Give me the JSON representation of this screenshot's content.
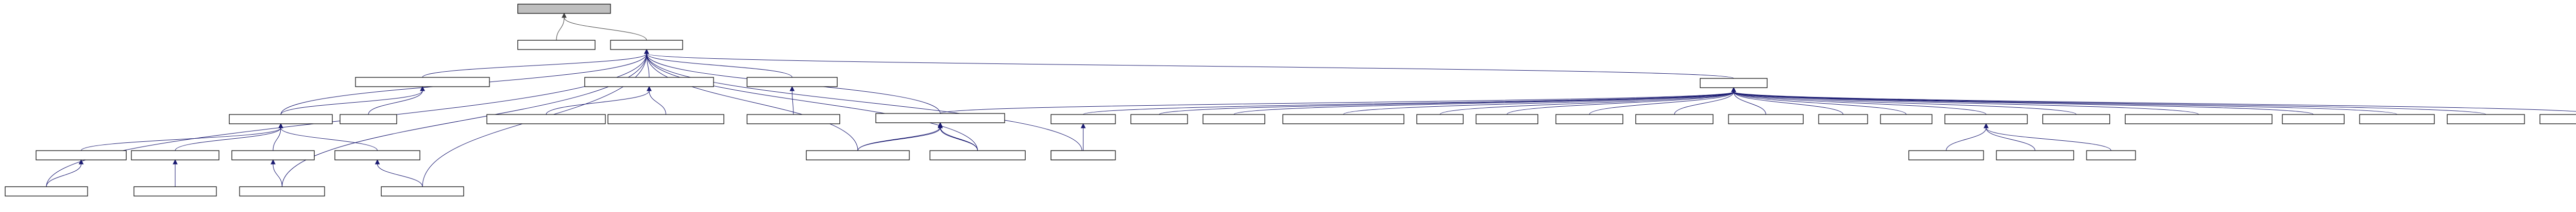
{
  "diagram": {
    "type": "inheritance-graph",
    "node_labels_legible": false,
    "edge_color": "#191970",
    "root_fill": "#bfbfbf",
    "nodes": [
      {
        "id": "root",
        "label": ""
      },
      {
        "id": "n_lvl1a",
        "label": ""
      },
      {
        "id": "n_hub",
        "label": ""
      },
      {
        "id": "n_l2a",
        "label": ""
      },
      {
        "id": "n_l2b",
        "label": ""
      },
      {
        "id": "n_l2c",
        "label": ""
      },
      {
        "id": "n_l2d",
        "label": ""
      },
      {
        "id": "n_l3a",
        "label": ""
      },
      {
        "id": "n_l3b",
        "label": ""
      },
      {
        "id": "n_l3c",
        "label": ""
      },
      {
        "id": "n_l3d",
        "label": ""
      },
      {
        "id": "n_l3e",
        "label": ""
      },
      {
        "id": "n_l4a",
        "label": ""
      },
      {
        "id": "n_l4b",
        "label": ""
      },
      {
        "id": "n_l4c",
        "label": ""
      },
      {
        "id": "n_l4d",
        "label": ""
      },
      {
        "id": "n_l5a",
        "label": ""
      },
      {
        "id": "n_l5b",
        "label": ""
      },
      {
        "id": "n_l5c",
        "label": ""
      },
      {
        "id": "n_l5d",
        "label": ""
      },
      {
        "id": "n_l4e",
        "label": ""
      },
      {
        "id": "n_l4f",
        "label": ""
      },
      {
        "id": "n_l4g",
        "label": ""
      },
      {
        "id": "n_hub2",
        "label": ""
      },
      {
        "id": "n_r1",
        "label": ""
      },
      {
        "id": "n_r2",
        "label": ""
      },
      {
        "id": "n_r3",
        "label": ""
      },
      {
        "id": "n_r4",
        "label": ""
      },
      {
        "id": "n_r5",
        "label": ""
      },
      {
        "id": "n_r6",
        "label": ""
      },
      {
        "id": "n_r7",
        "label": ""
      },
      {
        "id": "n_r8",
        "label": ""
      },
      {
        "id": "n_r9",
        "label": ""
      },
      {
        "id": "n_r10",
        "label": ""
      },
      {
        "id": "n_r11",
        "label": ""
      },
      {
        "id": "n_r12",
        "label": ""
      },
      {
        "id": "n_r13",
        "label": ""
      },
      {
        "id": "n_r14",
        "label": ""
      },
      {
        "id": "n_r15",
        "label": ""
      },
      {
        "id": "n_r16",
        "label": ""
      },
      {
        "id": "n_r17",
        "label": ""
      },
      {
        "id": "n_r18",
        "label": ""
      },
      {
        "id": "n_r19",
        "label": ""
      },
      {
        "id": "n_s1",
        "label": ""
      },
      {
        "id": "n_s2",
        "label": ""
      },
      {
        "id": "n_s3",
        "label": ""
      },
      {
        "id": "n_m1",
        "label": ""
      }
    ],
    "edges": [
      {
        "from": "n_lvl1a",
        "to": "root"
      },
      {
        "from": "n_hub",
        "to": "root"
      },
      {
        "from": "n_l2a",
        "to": "n_hub"
      },
      {
        "from": "n_l2b",
        "to": "n_hub"
      },
      {
        "from": "n_l2c",
        "to": "n_hub"
      },
      {
        "from": "n_l2d",
        "to": "n_hub"
      },
      {
        "from": "n_hub2",
        "to": "n_hub"
      },
      {
        "from": "n_l3a",
        "to": "n_l2a"
      },
      {
        "from": "n_l3b",
        "to": "n_l2a"
      },
      {
        "from": "n_l3a",
        "to": "n_hub"
      },
      {
        "from": "n_l3c",
        "to": "n_l2b"
      },
      {
        "from": "n_l3d",
        "to": "n_l2b"
      },
      {
        "from": "n_l3e",
        "to": "n_l2c"
      },
      {
        "from": "n_l3f",
        "to": "n_l2d"
      },
      {
        "from": "n_l4a",
        "to": "n_l3a"
      },
      {
        "from": "n_l4b",
        "to": "n_l3a"
      },
      {
        "from": "n_l4c",
        "to": "n_l3a"
      },
      {
        "from": "n_l4d",
        "to": "n_l3a"
      },
      {
        "from": "n_l5a",
        "to": "n_l4a"
      },
      {
        "from": "n_l5b",
        "to": "n_l4b"
      },
      {
        "from": "n_l5c",
        "to": "n_l4c"
      },
      {
        "from": "n_l5d",
        "to": "n_l4d"
      },
      {
        "from": "n_l4e",
        "to": "n_l3f"
      },
      {
        "from": "n_l4f",
        "to": "n_l3f"
      },
      {
        "from": "n_m1",
        "to": "n_r1"
      }
    ]
  }
}
